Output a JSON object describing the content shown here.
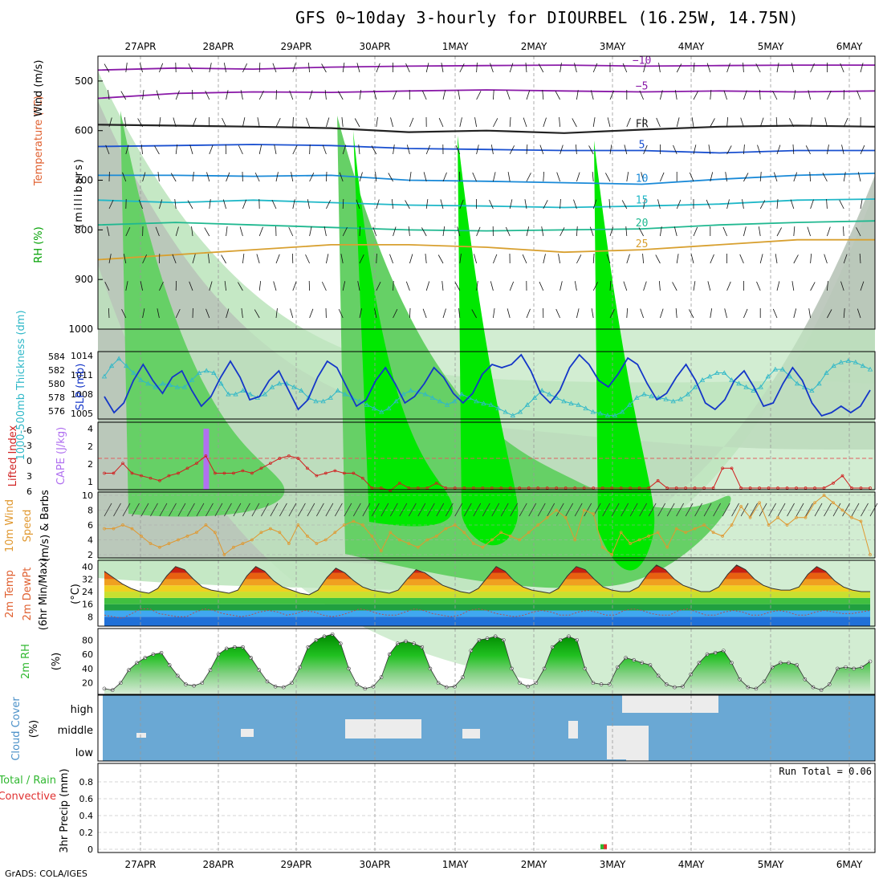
{
  "title": "GFS 0~10day 3-hourly for DIOURBEL (16.25W, 14.75N)",
  "credit": "GrADS: COLA/IGES",
  "colors": {
    "rh_green": "#00e800",
    "rh_mid": "#66d066",
    "rh_light": "#bfe6bf",
    "rh_gray": "#b8c4b8",
    "slp": "#1436c8",
    "thickness": "#30b8c8",
    "lifted_index": "#d02020",
    "cape": "#b070f0",
    "wind_speed": "#e09830",
    "rh2m": "#30b830",
    "cloud": "#6aa8d4",
    "cloud_fill": "#ececec",
    "rain": "#30b830",
    "convective": "#e03030"
  },
  "chart_data": {
    "date_labels": [
      "27APR",
      "28APR",
      "29APR",
      "30APR",
      "1MAY",
      "2MAY",
      "3MAY",
      "4MAY",
      "5MAY",
      "6MAY"
    ],
    "panels": [
      {
        "id": "upper-air",
        "type": "heatmap",
        "ylabel": "(millibars)",
        "side_labels": [
          "Temperature (°C)",
          "Wind (m/s)",
          "RH (%)"
        ],
        "y_ticks": [
          500,
          600,
          700,
          800,
          900,
          1000
        ],
        "ylim": [
          450,
          1000
        ],
        "freezing_level_label": "FR",
        "temperature_contours": [
          {
            "value": -10,
            "label": "−10",
            "levels": [
              478,
              474,
              476,
              472,
              470,
              469,
              468,
              470,
              469,
              468,
              468
            ]
          },
          {
            "value": -5,
            "label": "−5",
            "levels": [
              535,
              525,
              522,
              523,
              520,
              518,
              520,
              522,
              520,
              522,
              520
            ]
          },
          {
            "value": 0,
            "label": "FR",
            "levels": [
              588,
              590,
              592,
              595,
              603,
              600,
              605,
              598,
              592,
              590,
              592
            ]
          },
          {
            "value": 5,
            "label": "5",
            "levels": [
              632,
              630,
              628,
              630,
              636,
              638,
              640,
              640,
              645,
              640,
              640
            ]
          },
          {
            "value": 10,
            "label": "10",
            "levels": [
              690,
              690,
              692,
              690,
              700,
              702,
              705,
              708,
              698,
              690,
              686
            ]
          },
          {
            "value": 15,
            "label": "15",
            "levels": [
              740,
              745,
              740,
              745,
              750,
              752,
              755,
              752,
              748,
              740,
              738
            ]
          },
          {
            "value": 20,
            "label": "20",
            "levels": [
              790,
              785,
              790,
              795,
              800,
              802,
              800,
              798,
              790,
              785,
              782
            ]
          },
          {
            "value": 25,
            "label": "25",
            "levels": [
              860,
              850,
              840,
              830,
              830,
              835,
              845,
              840,
              830,
              820,
              820
            ]
          }
        ]
      },
      {
        "id": "slp-thickness",
        "type": "line",
        "ylabel_left": "1000-500mb Thickness (dm)",
        "ylabel_right": "SLP (mb)",
        "left_ticks": [
          "584",
          "582",
          "580",
          "578",
          "576"
        ],
        "right_ticks": [
          "1014",
          "1011",
          "1008",
          "1005"
        ],
        "slp_lim": [
          1003.5,
          1014
        ],
        "thickness_lim": [
          575,
          584.5
        ],
        "series": [
          {
            "name": "SLP (mb)",
            "values": [
              1007,
              1004.5,
              1006,
              1009.5,
              1012,
              1009.5,
              1007.5,
              1010,
              1011,
              1008,
              1005.5,
              1007,
              1010,
              1012.5,
              1010,
              1006.5,
              1007,
              1009.5,
              1011,
              1008,
              1005,
              1006.5,
              1010,
              1012.5,
              1011.5,
              1008.5,
              1005.5,
              1006.5,
              1009.5,
              1011.5,
              1009,
              1006,
              1007,
              1009,
              1011.5,
              1010,
              1007.5,
              1006,
              1007.5,
              1010.5,
              1012,
              1011.5,
              1012,
              1013.5,
              1011,
              1007.5,
              1006,
              1008,
              1011.5,
              1013.5,
              1012,
              1009.5,
              1008.5,
              1010.5,
              1013,
              1012,
              1009,
              1006.5,
              1007.5,
              1010,
              1012,
              1009.5,
              1006,
              1005,
              1006.5,
              1009.5,
              1011,
              1008.5,
              1005.5,
              1006,
              1009,
              1011.5,
              1009.5,
              1006,
              1004,
              1004.5,
              1005.5,
              1004.5,
              1005.5,
              1008
            ]
          },
          {
            "name": "Thickness (dm)",
            "values": [
              581,
              582.5,
              583.5,
              582.5,
              581.5,
              580.5,
              580,
              579.5,
              580,
              579.8,
              579.5,
              579.5,
              580.5,
              581.5,
              581.8,
              581.5,
              580,
              578.5,
              578.5,
              579,
              578.5,
              578,
              578.5,
              579.5,
              580,
              580,
              579.5,
              579,
              578,
              577.5,
              577.5,
              578,
              579,
              578.5,
              578,
              577.5,
              577,
              576.5,
              576,
              576.5,
              577.5,
              578.5,
              579,
              578.8,
              578.5,
              578,
              577.5,
              577,
              577.5,
              578.5,
              578,
              577.5,
              577.2,
              577,
              576.5,
              576,
              575.5,
              576,
              577,
              578,
              579,
              578.5,
              578,
              577.5,
              577.2,
              577,
              576.5,
              576,
              575.8,
              575.5,
              575.5,
              576,
              577,
              578,
              578.5,
              578.2,
              578,
              577.8,
              577.5,
              577.8,
              578.5,
              579.5,
              580.5,
              581,
              581.5,
              581.5,
              580.5,
              580,
              579.5,
              579,
              579.5,
              581,
              582,
              582,
              581,
              580,
              579.5,
              579,
              580,
              581.5,
              582.5,
              583,
              583.2,
              583,
              582.5,
              582
            ]
          }
        ]
      },
      {
        "id": "lifted-index-cape",
        "type": "line",
        "ylabel_left": "Lifted Index",
        "ylabel_right": "CAPE (J/kg)",
        "left_ticks": [
          "-6",
          "-3",
          "0",
          "3",
          "6"
        ],
        "right_ticks": [
          "4",
          "2",
          "2",
          "1"
        ],
        "series": [
          {
            "name": "Lifted Index",
            "values": [
              3,
              3,
              1,
              3,
              3.5,
              4,
              4.5,
              3.5,
              3,
              2,
              1,
              -0.5,
              3,
              3,
              3,
              2.5,
              3,
              2,
              1,
              0,
              -0.5,
              0,
              2,
              3.5,
              3,
              2.5,
              3,
              3,
              4,
              6,
              6,
              6.5,
              5,
              6,
              6,
              6,
              5,
              6,
              6,
              6,
              6,
              6,
              6,
              6,
              6,
              6,
              6,
              6,
              6,
              6,
              6,
              6,
              6,
              6,
              6,
              6,
              6,
              6,
              6,
              6,
              4.5,
              6,
              6,
              6,
              6,
              6,
              6,
              2,
              2,
              6,
              6,
              6,
              6,
              6,
              6,
              6,
              6,
              6,
              6,
              5,
              3.5,
              6,
              6,
              6
            ]
          },
          {
            "name": "CAPE (J/kg)",
            "bar_index": 11,
            "value": 4
          }
        ]
      },
      {
        "id": "wind-10m",
        "type": "line",
        "ylabel": "10m Wind Speed (m/s) & Barbs",
        "y_ticks": [
          2,
          4,
          6,
          8,
          10
        ],
        "ylim": [
          2,
          10
        ],
        "series": [
          {
            "name": "10m Wind Speed",
            "values": [
              5.5,
              5.5,
              6,
              5.5,
              4.5,
              3.5,
              3,
              3.5,
              4,
              4.5,
              5,
              6,
              5,
              2,
              3,
              3.5,
              4,
              5,
              5.5,
              5,
              3.5,
              6,
              4.5,
              3.5,
              4,
              5,
              6,
              6.5,
              6,
              4.5,
              2.5,
              5,
              4,
              3.5,
              3,
              4,
              4.5,
              5.5,
              6,
              5,
              3.5,
              3,
              4,
              5,
              4.5,
              4,
              5,
              6,
              7,
              8,
              7,
              4,
              8,
              7.5,
              3,
              2,
              5,
              3.5,
              4,
              4.5,
              5,
              3,
              5.5,
              5,
              5.5,
              6,
              5,
              4.5,
              6,
              8.5,
              7,
              9,
              6,
              7,
              6,
              7,
              7,
              9,
              10,
              9,
              8,
              7,
              6.5,
              2
            ]
          }
        ]
      },
      {
        "id": "temperature-2m",
        "type": "area",
        "ylabel": "2m Temp, 2m DewPt (6hr Min/Max) (°C)",
        "y_ticks": [
          8,
          16,
          24,
          32,
          40
        ],
        "ylim": [
          2,
          44
        ],
        "series": [
          {
            "name": "2m Temp",
            "values": [
              37,
              33,
              29,
              26,
              24,
              23,
              26,
              34,
              40,
              38,
              32,
              27,
              25,
              24,
              23,
              25,
              34,
              40,
              37,
              31,
              27,
              25,
              23,
              22,
              25,
              33,
              39,
              36,
              31,
              27,
              25,
              24,
              23,
              25,
              32,
              38,
              36,
              32,
              28,
              26,
              24,
              23,
              26,
              33,
              40,
              37,
              31,
              27,
              25,
              24,
              23,
              26,
              34,
              40,
              38,
              32,
              27,
              25,
              24,
              24,
              27,
              35,
              41,
              38,
              32,
              28,
              26,
              24,
              24,
              27,
              35,
              41,
              38,
              32,
              28,
              26,
              25,
              25,
              27,
              35,
              40,
              37,
              31,
              27,
              25,
              24,
              24
            ]
          },
          {
            "name": "2m DewPt",
            "values": [
              9,
              8,
              7,
              10,
              13,
              13,
              10,
              9,
              8,
              8,
              11,
              13,
              12,
              10,
              9,
              8,
              9,
              11,
              12,
              11,
              9,
              10,
              12,
              11,
              9,
              8,
              9,
              11,
              13,
              12,
              10,
              9,
              9,
              11,
              13,
              12,
              10,
              9,
              8,
              9,
              12,
              13,
              12,
              10,
              9,
              8,
              9,
              11,
              12,
              11,
              9,
              9,
              11,
              12,
              11,
              9,
              9,
              12,
              13,
              12,
              10,
              9,
              9,
              12,
              13,
              11,
              9,
              9,
              11,
              12,
              11,
              9,
              9,
              11,
              12,
              11,
              9,
              9,
              11,
              12,
              11,
              10,
              10,
              11,
              12
            ]
          }
        ]
      },
      {
        "id": "rh-2m",
        "type": "area",
        "ylabel": "2m RH (%)",
        "y_ticks": [
          20,
          40,
          60,
          80
        ],
        "ylim": [
          4,
          96
        ],
        "series": [
          {
            "name": "2m RH",
            "values": [
              12,
              10,
              20,
              38,
              48,
              55,
              60,
              62,
              45,
              30,
              18,
              16,
              20,
              38,
              60,
              68,
              70,
              70,
              55,
              38,
              22,
              15,
              14,
              20,
              42,
              70,
              80,
              85,
              88,
              75,
              40,
              18,
              12,
              15,
              28,
              60,
              75,
              78,
              75,
              70,
              40,
              20,
              14,
              15,
              28,
              65,
              80,
              82,
              85,
              80,
              40,
              20,
              15,
              20,
              40,
              70,
              80,
              85,
              80,
              40,
              20,
              18,
              18,
              42,
              55,
              52,
              48,
              45,
              30,
              18,
              14,
              15,
              32,
              48,
              60,
              62,
              65,
              48,
              25,
              14,
              12,
              22,
              42,
              48,
              48,
              45,
              25,
              14,
              10,
              18,
              40,
              42,
              40,
              42,
              50
            ]
          }
        ]
      },
      {
        "id": "cloud-cover",
        "type": "heatmap",
        "ylabel": "Cloud Cover (%)",
        "row_labels": [
          "high",
          "middle",
          "low"
        ]
      },
      {
        "id": "precip-3hr",
        "type": "bar",
        "ylabel": "3hr Precip (mm)",
        "side_labels": [
          "Total / Rain",
          "Convective"
        ],
        "y_ticks": [
          "0",
          "0.2",
          "0.4",
          "0.6",
          "0.8"
        ],
        "ylim": [
          0,
          1
        ],
        "run_total_label": "Run Total = 0.06",
        "bars": [
          {
            "index": 50,
            "value": 0.06
          }
        ]
      }
    ]
  }
}
